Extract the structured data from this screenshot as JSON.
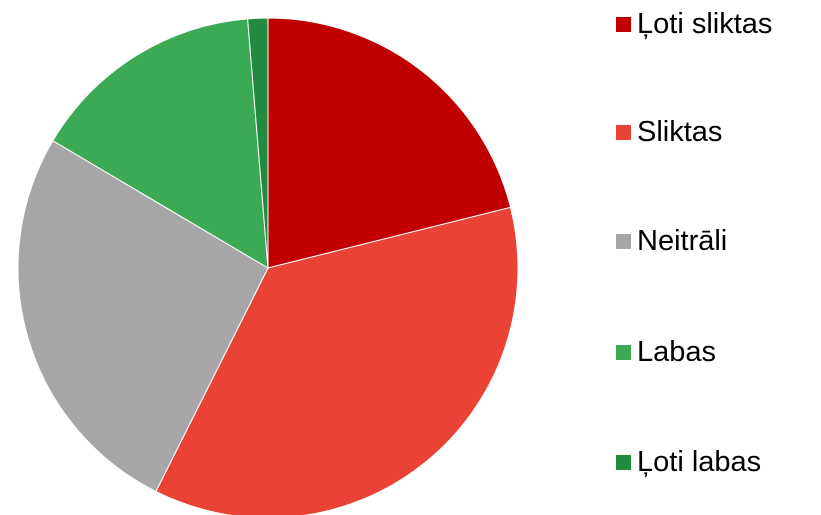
{
  "chart_data": {
    "type": "pie",
    "title": "",
    "start_angle": "12 o'clock",
    "direction": "clockwise",
    "legend_position": "right",
    "slices": [
      {
        "label": "Ļoti sliktas",
        "value": 21.1,
        "color": "#C00000"
      },
      {
        "label": "Sliktas",
        "value": 36.3,
        "color": "#EA4335"
      },
      {
        "label": "Neitrāli",
        "value": 26.1,
        "color": "#A6A6A6"
      },
      {
        "label": "Labas",
        "value": 15.2,
        "color": "#3CAA55"
      },
      {
        "label": "Ļoti labas",
        "value": 1.3,
        "color": "#228B40"
      }
    ]
  }
}
